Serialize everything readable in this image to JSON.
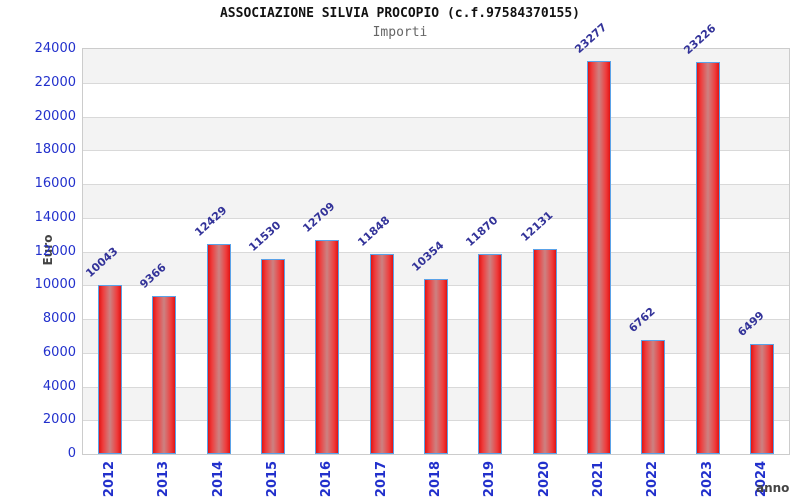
{
  "chart_data": {
    "type": "bar",
    "title": "ASSOCIAZIONE SILVIA PROCOPIO (c.f.97584370155)",
    "subtitle": "Importi",
    "xlabel": "anno",
    "ylabel": "Euro",
    "categories": [
      "2012",
      "2013",
      "2014",
      "2015",
      "2016",
      "2017",
      "2018",
      "2019",
      "2020",
      "2021",
      "2022",
      "2023",
      "2024"
    ],
    "values": [
      10043,
      9366,
      12429,
      11530,
      12709,
      11848,
      10354,
      11870,
      12131,
      23277,
      6762,
      23226,
      6499
    ],
    "ylim": [
      0,
      24000
    ],
    "ytick_step": 2000,
    "grid": "horizontal bands, alternating gray/white, light gridlines every 2000",
    "legend_position": "none",
    "colors": {
      "axis_tick_text": "#2230cc",
      "bar_value_text": "#333399",
      "bar_fill_main": "#e01414",
      "bar_fill_mid": "#cc8282",
      "bar_border": "#5aa2e8",
      "band_gray": "#f3f3f3",
      "band_white": "#ffffff",
      "gridline": "#d9d9d9",
      "plot_border": "#cccccc",
      "title_text": "#111111",
      "subtitle_text": "#666666",
      "axis_label_text": "#444444"
    }
  }
}
